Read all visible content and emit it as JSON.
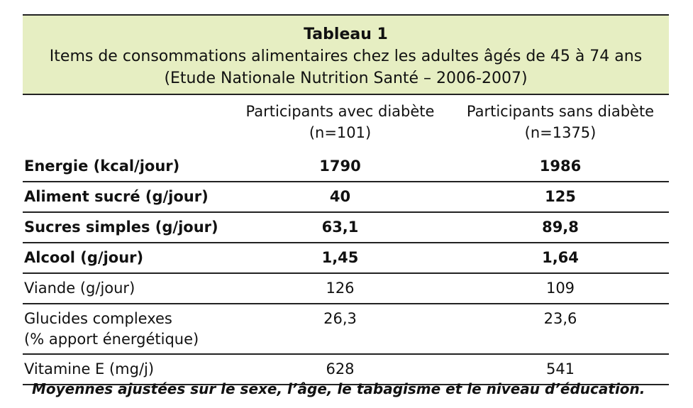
{
  "table": {
    "title": "Tableau 1",
    "subtitle_line1": "Items de consommations alimentaires chez les adultes âgés de 45 à 74 ans",
    "subtitle_line2": "(Etude Nationale Nutrition Santé – 2006-2007)",
    "columns": [
      {
        "label": "Participants avec diabète",
        "n": "(n=101)"
      },
      {
        "label": "Participants sans diabète",
        "n": "(n=1375)"
      }
    ],
    "rows": [
      {
        "label": "Energie (kcal/jour)",
        "with": "1790",
        "without": "1986",
        "bold": true
      },
      {
        "label": "Aliment sucré (g/jour)",
        "with": "40",
        "without": "125",
        "bold": true
      },
      {
        "label": "Sucres simples (g/jour)",
        "with": "63,1",
        "without": "89,8",
        "bold": true
      },
      {
        "label": "Alcool (g/jour)",
        "with": "1,45",
        "without": "1,64",
        "bold": true
      },
      {
        "label": "Viande (g/jour)",
        "with": "126",
        "without": "109",
        "bold": false
      },
      {
        "label_line1": "Glucides complexes",
        "label_line2": "(% apport énergétique)",
        "with": "26,3",
        "without": "23,6",
        "bold": false
      },
      {
        "label": "Vitamine E (mg/j)",
        "with": "628",
        "without": "541",
        "bold": false
      }
    ]
  },
  "footnote": "Moyennes ajustées sur le sexe, l’âge, le tabagisme et le niveau d’éducation.",
  "colors": {
    "caption_background": "#e6eec2",
    "rule": "#222222"
  }
}
